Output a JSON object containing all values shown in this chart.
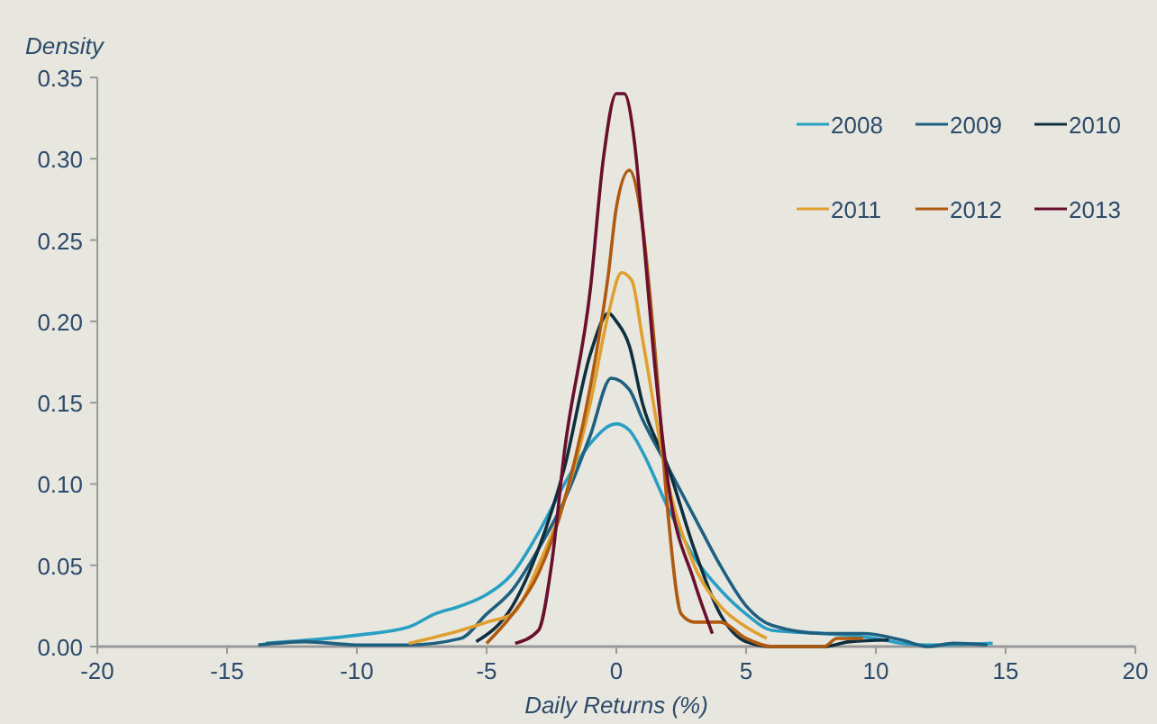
{
  "chart_data": {
    "type": "line",
    "ylabel": "Density",
    "xlabel": "Daily Returns (%)",
    "xlim": [
      -20,
      20
    ],
    "xticks": [
      -20,
      -15,
      -10,
      -5,
      0,
      5,
      10,
      15,
      20
    ],
    "ylim": [
      0,
      0.35
    ],
    "yticks": [
      {
        "value": 0,
        "label": "0.00"
      },
      {
        "value": 0.05,
        "label": "0.05"
      },
      {
        "value": 0.1,
        "label": "0.10"
      },
      {
        "value": 0.15,
        "label": "0.15"
      },
      {
        "value": 0.2,
        "label": "0.20"
      },
      {
        "value": 0.25,
        "label": "0.25"
      },
      {
        "value": 0.3,
        "label": "0.30"
      },
      {
        "value": 0.35,
        "label": "0.35"
      }
    ],
    "grid": false,
    "legend": "top right",
    "marker": "none",
    "line_style": "solid",
    "series": [
      {
        "name": "2008",
        "color": "#2a9fc4",
        "x": [
          -13.5,
          -10,
          -8,
          -7,
          -6,
          -5,
          -4,
          -3,
          -2,
          -1,
          0,
          0.5,
          1,
          2,
          3,
          4,
          5,
          6,
          8,
          10,
          11,
          12,
          14.5
        ],
        "values": [
          0.002,
          0.007,
          0.012,
          0.02,
          0.025,
          0.032,
          0.045,
          0.07,
          0.1,
          0.125,
          0.137,
          0.133,
          0.12,
          0.085,
          0.055,
          0.035,
          0.02,
          0.01,
          0.008,
          0.005,
          0.002,
          0.001,
          0.002
        ]
      },
      {
        "name": "2009",
        "color": "#1f5f80",
        "x": [
          -13.8,
          -12,
          -10,
          -8,
          -6,
          -5,
          -4,
          -3,
          -2,
          -1,
          -0.2,
          0.5,
          1,
          2,
          3,
          4,
          5,
          6,
          8,
          9.5,
          11,
          12,
          13,
          14.3
        ],
        "values": [
          0.001,
          0.003,
          0.001,
          0.001,
          0.005,
          0.02,
          0.035,
          0.06,
          0.09,
          0.13,
          0.165,
          0.158,
          0.14,
          0.11,
          0.08,
          0.05,
          0.025,
          0.013,
          0.008,
          0.008,
          0.004,
          0,
          0.002,
          0.001
        ]
      },
      {
        "name": "2010",
        "color": "#0f2e3e",
        "x": [
          -5.4,
          -4,
          -3,
          -2,
          -1,
          -0.3,
          0,
          0.5,
          1,
          2,
          3,
          4,
          5,
          6,
          8,
          9,
          10.5
        ],
        "values": [
          0.003,
          0.025,
          0.06,
          0.11,
          0.18,
          0.205,
          0.2,
          0.185,
          0.15,
          0.11,
          0.06,
          0.02,
          0.003,
          0,
          0,
          0.003,
          0.004
        ]
      },
      {
        "name": "2011",
        "color": "#e0a030",
        "x": [
          -8,
          -6,
          -5,
          -4,
          -3,
          -2,
          -1,
          -0.3,
          0.2,
          0.6,
          1,
          2,
          3,
          4,
          5,
          5.8
        ],
        "values": [
          0.002,
          0.01,
          0.015,
          0.02,
          0.05,
          0.09,
          0.15,
          0.205,
          0.23,
          0.225,
          0.19,
          0.1,
          0.05,
          0.025,
          0.012,
          0.005
        ]
      },
      {
        "name": "2012",
        "color": "#b05a10",
        "x": [
          -5,
          -4,
          -3,
          -2,
          -1,
          -0.3,
          0,
          0.5,
          1,
          1.5,
          2,
          2.5,
          3,
          4,
          5,
          6,
          8,
          8.5,
          9.5
        ],
        "values": [
          0.002,
          0.02,
          0.045,
          0.09,
          0.16,
          0.23,
          0.27,
          0.293,
          0.26,
          0.18,
          0.08,
          0.02,
          0.015,
          0.015,
          0.005,
          0,
          0,
          0.005,
          0.005
        ]
      },
      {
        "name": "2013",
        "color": "#6a0f2e",
        "x": [
          -3.9,
          -3,
          -2.5,
          -2,
          -1,
          -0.5,
          0,
          0.3,
          0.7,
          1,
          1.5,
          2,
          3,
          3.7
        ],
        "values": [
          0.002,
          0.01,
          0.05,
          0.12,
          0.22,
          0.3,
          0.34,
          0.34,
          0.31,
          0.26,
          0.17,
          0.1,
          0.04,
          0.008
        ]
      }
    ]
  }
}
